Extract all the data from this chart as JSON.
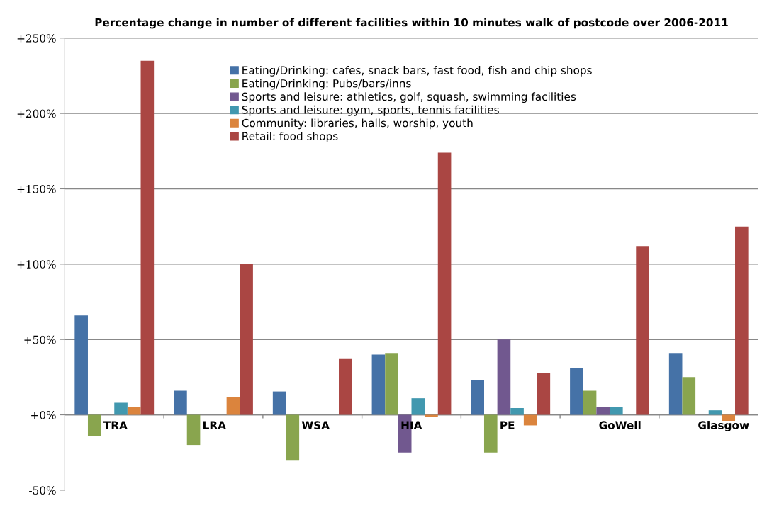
{
  "chart_data": {
    "type": "bar",
    "title": "Percentage change in number of different facilities within 10 minutes walk of postcode over 2006-2011",
    "categories": [
      "TRA",
      "LRA",
      "WSA",
      "HIA",
      "PE",
      "GoWell",
      "Glasgow"
    ],
    "series": [
      {
        "name": "Eating/Drinking: cafes, snack bars, fast food, fish and chip shops",
        "color": "#4572a7",
        "values": [
          66,
          16,
          15.5,
          40,
          23,
          31,
          41
        ]
      },
      {
        "name": "Eating/Drinking: Pubs/bars/inns",
        "color": "#89a54e",
        "values": [
          -14,
          -20,
          -30,
          41,
          -25,
          16,
          25
        ]
      },
      {
        "name": "Sports and leisure: athletics, golf, squash, swimming facilities",
        "color": "#71588f",
        "values": [
          null,
          null,
          null,
          -25,
          50,
          5,
          null
        ]
      },
      {
        "name": "Sports and leisure: gym, sports, tennis facilities",
        "color": "#4198af",
        "values": [
          8,
          null,
          null,
          11,
          4.5,
          5,
          3
        ]
      },
      {
        "name": "Community: libraries, halls, worship, youth",
        "color": "#db843d",
        "values": [
          5,
          12,
          null,
          -1.5,
          -7,
          null,
          -4
        ]
      },
      {
        "name": "Retail: food shops",
        "color": "#aa4643",
        "values": [
          235,
          100,
          37.5,
          174,
          28,
          112,
          125
        ]
      }
    ],
    "ylim": [
      -50,
      250
    ],
    "yticks": [
      {
        "value": -50,
        "label": "-50%"
      },
      {
        "value": 0,
        "label": "+0%"
      },
      {
        "value": 50,
        "label": "+50%"
      },
      {
        "value": 100,
        "label": "+100%"
      },
      {
        "value": 150,
        "label": "+150%"
      },
      {
        "value": 200,
        "label": "+200%"
      },
      {
        "value": 250,
        "label": "+250%"
      }
    ],
    "grid": "y",
    "legend": "top"
  }
}
